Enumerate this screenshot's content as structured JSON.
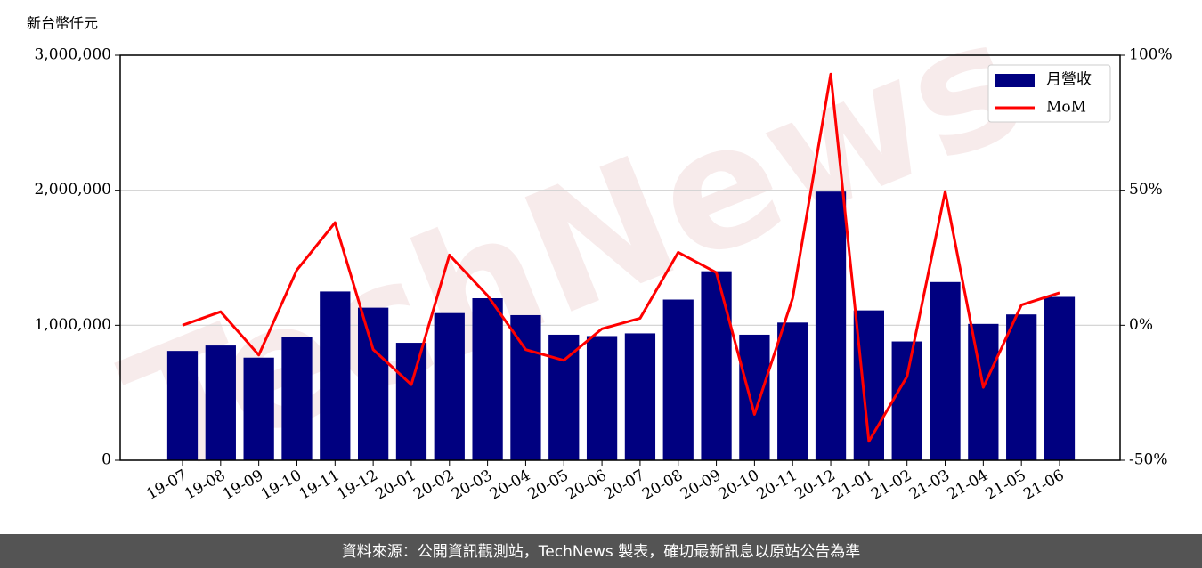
{
  "chart_data": {
    "type": "bar",
    "y_label": "新台幣仟元",
    "watermark": "TechNews",
    "source": "資料來源：公開資訊觀測站，TechNews 製表，確切最新訊息以原站公告為準",
    "categories": [
      "19-07",
      "19-08",
      "19-09",
      "19-10",
      "19-11",
      "19-12",
      "20-01",
      "20-02",
      "20-03",
      "20-04",
      "20-05",
      "20-06",
      "20-07",
      "20-08",
      "20-09",
      "20-10",
      "20-11",
      "20-12",
      "21-01",
      "21-02",
      "21-03",
      "21-04",
      "21-05",
      "21-06"
    ],
    "series": [
      {
        "name": "月營收",
        "type": "bar",
        "color": "#000080",
        "values": [
          810000,
          850000,
          760000,
          910000,
          1250000,
          1130000,
          870000,
          1090000,
          1200000,
          1075000,
          930000,
          920000,
          940000,
          1190000,
          1400000,
          930000,
          1020000,
          1990000,
          1110000,
          880000,
          1320000,
          1010000,
          1080000,
          1210000
        ]
      },
      {
        "name": "MoM",
        "type": "line",
        "color": "#ff0000",
        "axis": "y2",
        "values": [
          0,
          5,
          -11,
          20.5,
          38,
          -9,
          -22,
          26,
          11,
          -9,
          -13,
          -1.3,
          2.6,
          27,
          19.5,
          -33,
          10,
          93,
          -43,
          -19,
          49.5,
          -23,
          7.5,
          12
        ]
      }
    ],
    "ylim": [
      0,
      3000000
    ],
    "yticks": [
      0,
      {
        "value": 1000000,
        "label": "1,000,000"
      },
      {
        "value": 2000000,
        "label": "2,000,000"
      },
      {
        "value": 3000000,
        "label": "3,000,000"
      }
    ],
    "y2lim": [
      -50,
      100
    ],
    "y2ticks": [
      {
        "value": -50,
        "label": "-50%"
      },
      {
        "value": 0,
        "label": "0%"
      },
      {
        "value": 50,
        "label": "50%"
      },
      {
        "value": 100,
        "label": "100%"
      }
    ],
    "grid": true,
    "legend": "upper-right"
  }
}
